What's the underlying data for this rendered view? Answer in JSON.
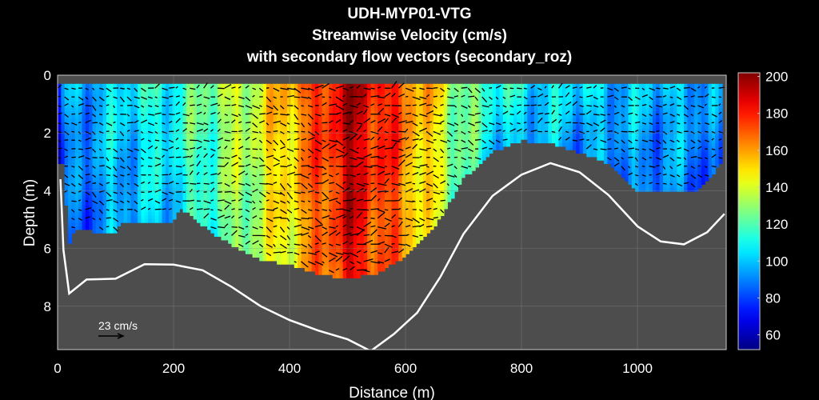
{
  "chart_data": {
    "type": "heatmap",
    "title": [
      "UDH-MYP01-VTG",
      "Streamwise Velocity (cm/s)",
      "with secondary flow vectors (secondary_roz)"
    ],
    "xlabel": "Distance (m)",
    "ylabel": "Depth (m)",
    "xlim": [
      0,
      1153
    ],
    "ylim": [
      9.5,
      0
    ],
    "y_reversed": true,
    "xticks": [
      0,
      200,
      400,
      600,
      800,
      1000
    ],
    "yticks": [
      0,
      2,
      4,
      6,
      8
    ],
    "grid": true,
    "background_color": "#4d4d4d",
    "colorbar": {
      "colormap": "jet",
      "range": [
        52,
        202
      ],
      "ticks": [
        60,
        80,
        100,
        120,
        140,
        160,
        180,
        200
      ],
      "location": "right"
    },
    "data_top_depth": 0.3,
    "streamwise_velocity_near_surface": {
      "distance": [
        0,
        20,
        100,
        200,
        250,
        300,
        350,
        400,
        450,
        500,
        550,
        600,
        650,
        700,
        750,
        800,
        900,
        1000,
        1100,
        1150
      ],
      "velocity": [
        70,
        95,
        105,
        115,
        125,
        135,
        145,
        160,
        175,
        195,
        185,
        170,
        150,
        130,
        115,
        110,
        105,
        100,
        100,
        90
      ]
    },
    "data_bottom_depth": {
      "distance": [
        0,
        10,
        20,
        30,
        100,
        110,
        200,
        210,
        260,
        300,
        350,
        400,
        450,
        500,
        550,
        600,
        650,
        700,
        750,
        800,
        850,
        900,
        950,
        1000,
        1050,
        1100,
        1145
      ],
      "depth": [
        3.0,
        3.0,
        5.8,
        5.3,
        5.4,
        5.0,
        5.0,
        4.5,
        5.3,
        5.8,
        6.3,
        6.5,
        6.8,
        7.0,
        6.8,
        6.2,
        5.2,
        3.5,
        2.6,
        2.2,
        2.3,
        2.6,
        3.0,
        4.0,
        4.0,
        4.0,
        3.0
      ]
    },
    "bed_profile": {
      "color": "#ffffff",
      "distance": [
        5,
        10,
        20,
        50,
        100,
        150,
        200,
        250,
        300,
        350,
        400,
        450,
        500,
        540,
        580,
        620,
        660,
        700,
        750,
        800,
        850,
        900,
        950,
        1000,
        1040,
        1080,
        1120,
        1150
      ],
      "depth": [
        3.6,
        6.0,
        7.5,
        7.1,
        7.0,
        6.6,
        6.5,
        6.8,
        7.3,
        8.0,
        8.5,
        8.8,
        9.2,
        9.5,
        9.0,
        8.2,
        7.0,
        5.5,
        4.2,
        3.4,
        3.1,
        3.3,
        4.2,
        5.2,
        5.8,
        5.8,
        5.5,
        4.8
      ]
    },
    "vector_reference": {
      "label": "23 cm/s",
      "value": 23,
      "color": "#000000"
    }
  }
}
